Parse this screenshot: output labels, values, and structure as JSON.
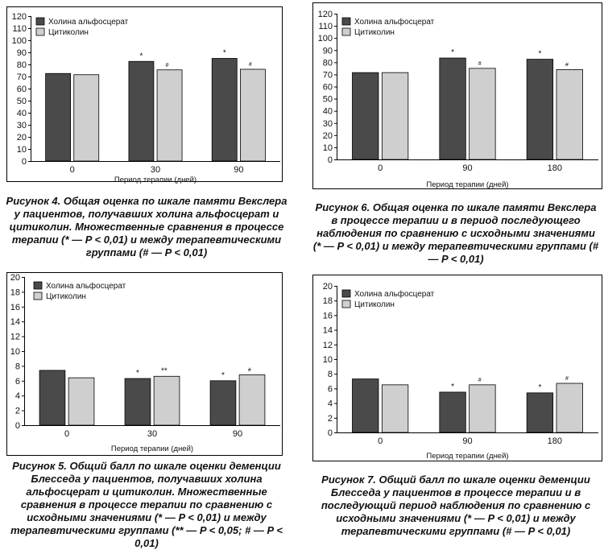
{
  "colors": {
    "choline": "#4a4a4a",
    "citicoline": "#cfcfcf"
  },
  "captions": {
    "fig4": "Рисунок 4. Общая оценка по шкале памяти Векслера у пациентов, получавших холина альфосцерат и цитиколин. Множественные сравнения в процессе терапии (* — P < 0,01) и между терапевтическими группами (# — P < 0,01)",
    "fig5": "Рисунок 5. Общий балл по шкале оценки деменции Блесседа у пациентов, получавших холина альфосцерат и цитиколин. Множественные сравнения в процессе терапии по сравнению с исходными значениями (* — P < 0,01) и между терапевтическими группами (** — P < 0,05; # — P < 0,01)",
    "fig6": "Рисунок 6. Общая оценка по шкале памяти Векслера в процессе терапии и в период последующего наблюдения по сравнению с исходными значениями (* — P < 0,01) и между терапевтическими группами (# — P < 0,01)",
    "fig7": "Рисунок 7. Общий балл по шкале оценки деменции Блесседа у пациентов в процессе терапии и в последующий период наблюдения по сравнению с исходными значениями (* — P < 0,01) и между терапевтическими группами (# — P < 0,01)"
  },
  "chart_data": [
    {
      "id": "fig4",
      "type": "bar",
      "categories": [
        "0",
        "30",
        "90"
      ],
      "xlabel": "Период терапии (дней)",
      "ylim": [
        0,
        120
      ],
      "yticks": [
        0,
        10,
        20,
        30,
        40,
        50,
        60,
        70,
        80,
        90,
        100,
        110,
        120
      ],
      "legend": "top-left",
      "series": [
        {
          "name": "Холина альфосцерат",
          "values": [
            72.5,
            82.5,
            85
          ],
          "annotations": [
            "",
            "*",
            "*"
          ]
        },
        {
          "name": "Цитиколин",
          "values": [
            71.5,
            75.5,
            76
          ],
          "annotations": [
            "",
            "#",
            "#"
          ]
        }
      ]
    },
    {
      "id": "fig6",
      "type": "bar",
      "categories": [
        "0",
        "90",
        "180"
      ],
      "xlabel": "Период терапии (дней)",
      "ylim": [
        0,
        120
      ],
      "yticks": [
        0,
        10,
        20,
        30,
        40,
        50,
        60,
        70,
        80,
        90,
        100,
        110,
        120
      ],
      "legend": "top-left",
      "series": [
        {
          "name": "Холина альфосцерат",
          "values": [
            71.5,
            83.5,
            82.5
          ],
          "annotations": [
            "",
            "*",
            "*"
          ]
        },
        {
          "name": "Цитиколин",
          "values": [
            71.5,
            75,
            74
          ],
          "annotations": [
            "",
            "#",
            "#"
          ]
        }
      ]
    },
    {
      "id": "fig5",
      "type": "bar",
      "categories": [
        "0",
        "30",
        "90"
      ],
      "xlabel": "Период терапии (дней)",
      "ylim": [
        0,
        20
      ],
      "yticks": [
        0,
        2,
        4,
        6,
        8,
        10,
        12,
        14,
        16,
        18,
        20
      ],
      "legend": "top-left",
      "series": [
        {
          "name": "Холина альфосцерат",
          "values": [
            7.4,
            6.3,
            6.0
          ],
          "annotations": [
            "",
            "*",
            "*"
          ]
        },
        {
          "name": "Цитиколин",
          "values": [
            6.4,
            6.6,
            6.8
          ],
          "annotations": [
            "",
            "**",
            "#"
          ]
        }
      ]
    },
    {
      "id": "fig7",
      "type": "bar",
      "categories": [
        "0",
        "90",
        "180"
      ],
      "xlabel": "Период терапии (дней)",
      "ylim": [
        0,
        20
      ],
      "yticks": [
        0,
        2,
        4,
        6,
        8,
        10,
        12,
        14,
        16,
        18,
        20
      ],
      "legend": "top-left",
      "series": [
        {
          "name": "Холина альфосцерат",
          "values": [
            7.3,
            5.5,
            5.4
          ],
          "annotations": [
            "",
            "*",
            "*"
          ]
        },
        {
          "name": "Цитиколин",
          "values": [
            6.5,
            6.5,
            6.7
          ],
          "annotations": [
            "",
            "#",
            "#"
          ]
        }
      ]
    }
  ]
}
